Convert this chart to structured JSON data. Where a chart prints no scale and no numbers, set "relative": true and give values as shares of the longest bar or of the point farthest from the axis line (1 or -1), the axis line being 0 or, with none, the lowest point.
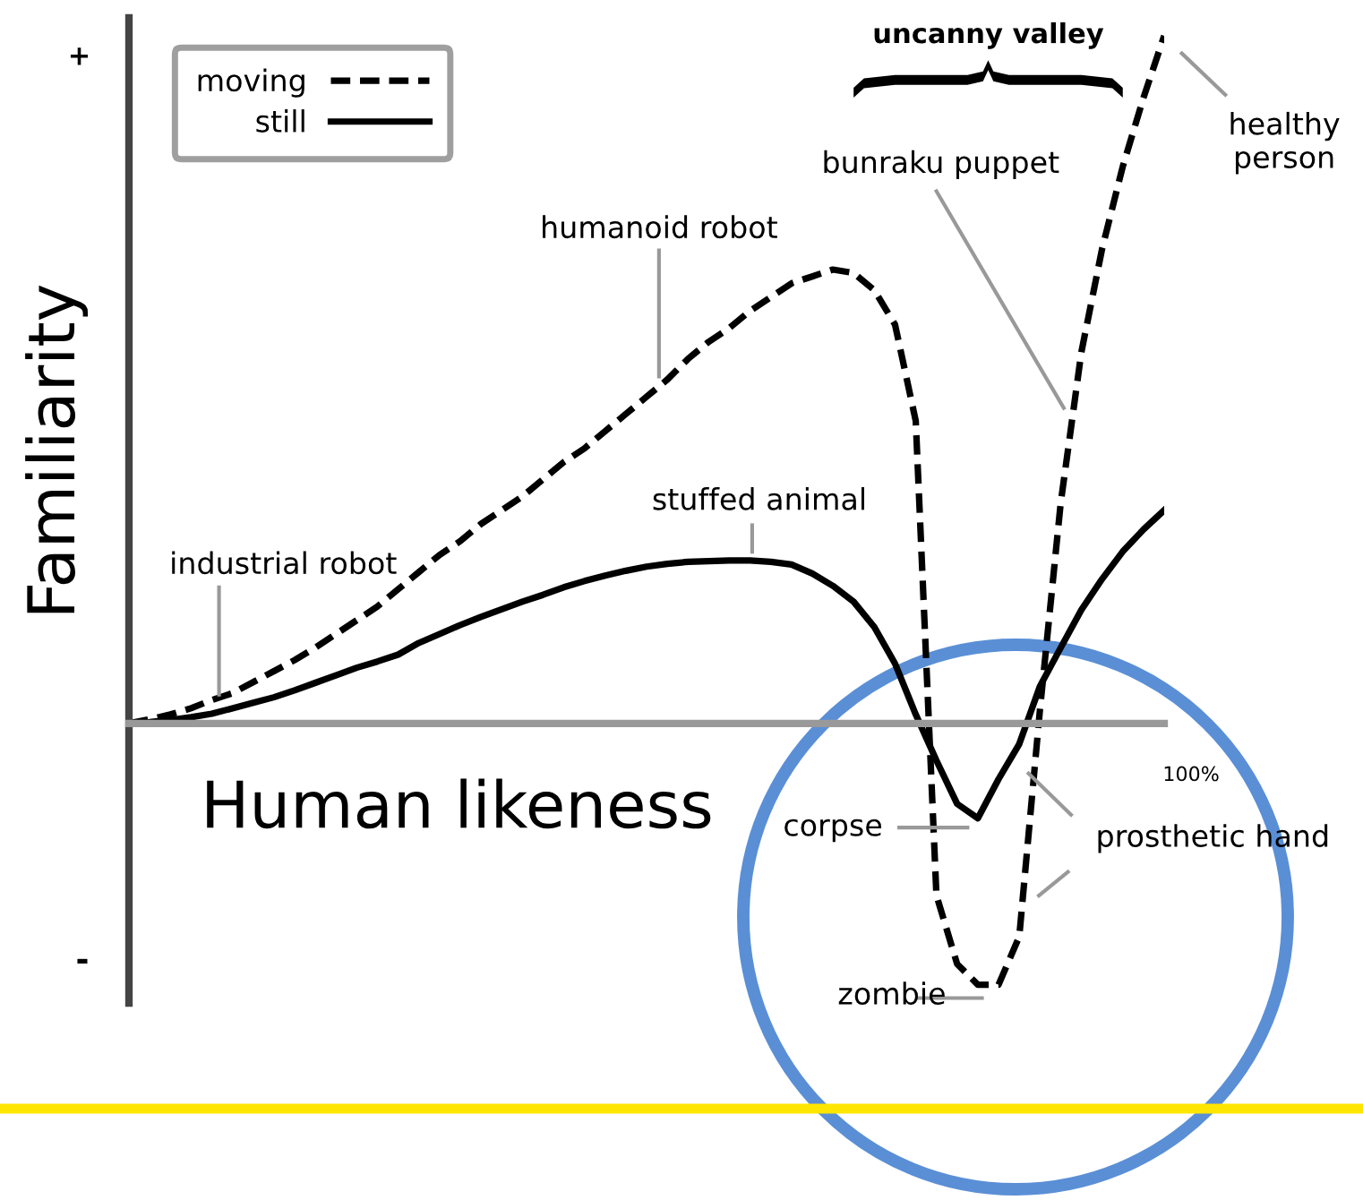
{
  "chart_data": {
    "type": "line",
    "relative": true,
    "xlabel": "Human likeness",
    "ylabel": "Familiarity",
    "categories": [
      null,
      null,
      null,
      null,
      null,
      null,
      null,
      null,
      null,
      null,
      null,
      null,
      null,
      null,
      null,
      null,
      null,
      null,
      null,
      null,
      null,
      null,
      null,
      null,
      null,
      null,
      null,
      null,
      null,
      null,
      null,
      null,
      null,
      null,
      null,
      null,
      null,
      null,
      null,
      null,
      null,
      null,
      null,
      null,
      null,
      null,
      null,
      null,
      null,
      null,
      null
    ],
    "legend": "top left",
    "series": [
      {
        "name": "moving",
        "color": "#000000",
        "line_style": "dashed",
        "values": [
          0,
          0.006,
          0.013,
          0.022,
          0.034,
          0.044,
          0.06,
          0.076,
          0.092,
          0.11,
          0.13,
          0.15,
          0.17,
          0.195,
          0.22,
          0.245,
          0.265,
          0.29,
          0.31,
          0.33,
          0.355,
          0.38,
          0.4,
          0.425,
          0.45,
          0.475,
          0.5,
          0.53,
          0.555,
          0.575,
          0.6,
          0.62,
          0.64,
          0.65,
          0.66,
          0.655,
          0.63,
          0.58,
          0.44,
          -0.25,
          -0.35,
          -0.38,
          -0.38,
          -0.31,
          0.02,
          0.32,
          0.54,
          0.69,
          0.81,
          0.91,
          1
        ]
      },
      {
        "name": "still",
        "color": "#000000",
        "line_style": "solid",
        "values": [
          0,
          0.002,
          0.005,
          0.009,
          0.014,
          0.022,
          0.03,
          0.038,
          0.048,
          0.059,
          0.07,
          0.081,
          0.09,
          0.1,
          0.117,
          0.13,
          0.143,
          0.155,
          0.166,
          0.177,
          0.187,
          0.198,
          0.207,
          0.215,
          0.222,
          0.228,
          0.232,
          0.235,
          0.236,
          0.237,
          0.237,
          0.235,
          0.231,
          0.218,
          0.2,
          0.177,
          0.14,
          0.087,
          0.013,
          -0.054,
          -0.117,
          -0.138,
          -0.081,
          -0.03,
          0.054,
          0.11,
          0.165,
          0.21,
          0.25,
          0.282,
          0.31
        ]
      }
    ],
    "annotations": [
      "industrial robot",
      "humanoid robot",
      "stuffed animal",
      "bunraku puppet",
      "healthy\nperson",
      "corpse",
      "zombie",
      "prosthetic hand",
      "uncanny valley",
      "+",
      "-",
      "100%"
    ]
  }
}
